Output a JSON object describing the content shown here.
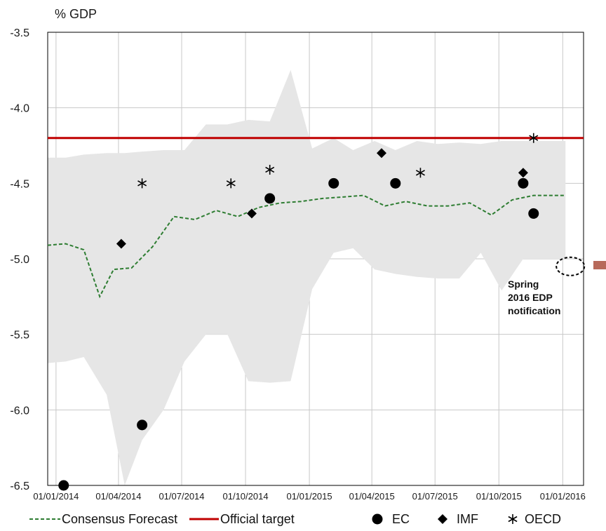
{
  "chart_data": {
    "type": "line",
    "ylabel": "% GDP",
    "ylim": [
      -6.5,
      -3.5
    ],
    "yticks": [
      -3.5,
      -4.0,
      -4.5,
      -5.0,
      -5.5,
      -6.0,
      -6.5
    ],
    "ytick_labels": [
      "-3.5",
      "-4.0",
      "-4.5",
      "-5.0",
      "-5.5",
      "-6.0",
      "-6.5"
    ],
    "xlim": [
      "2013-12-20",
      "2016-01-31"
    ],
    "xticks": [
      "2014-01-01",
      "2014-04-01",
      "2014-07-01",
      "2014-10-01",
      "2015-01-01",
      "2015-04-01",
      "2015-07-01",
      "2015-10-01",
      "2016-01-01"
    ],
    "xtick_labels": [
      "01/01/2014",
      "01/04/2014",
      "01/07/2014",
      "01/10/2014",
      "01/01/2015",
      "01/04/2015",
      "01/07/2015",
      "01/10/2015",
      "01/01/2016"
    ],
    "grid": true,
    "range_band": {
      "x": [
        "2013-12-20",
        "2014-01-15",
        "2014-02-10",
        "2014-03-15",
        "2014-04-10",
        "2014-05-05",
        "2014-06-05",
        "2014-07-05",
        "2014-08-05",
        "2014-09-05",
        "2014-10-05",
        "2014-11-05",
        "2014-12-05",
        "2015-01-05",
        "2015-02-05",
        "2015-03-05",
        "2015-04-05",
        "2015-05-05",
        "2015-06-05",
        "2015-07-05",
        "2015-08-05",
        "2015-09-05",
        "2015-10-05",
        "2015-11-05",
        "2015-12-05",
        "2016-01-05"
      ],
      "upper": [
        -4.33,
        -4.33,
        -4.31,
        -4.3,
        -4.3,
        -4.29,
        -4.28,
        -4.28,
        -4.11,
        -4.11,
        -4.08,
        -4.09,
        -3.75,
        -4.27,
        -4.2,
        -4.28,
        -4.22,
        -4.28,
        -4.22,
        -4.24,
        -4.23,
        -4.24,
        -4.22,
        -4.22,
        -4.22,
        -4.22
      ],
      "lower": [
        -5.69,
        -5.68,
        -5.65,
        -5.9,
        -6.5,
        -6.2,
        -6.0,
        -5.68,
        -5.5,
        -5.5,
        -5.81,
        -5.82,
        -5.81,
        -5.2,
        -4.96,
        -4.93,
        -5.07,
        -5.1,
        -5.12,
        -5.13,
        -5.13,
        -4.96,
        -5.21,
        -5.0,
        -5.0,
        -5.0
      ]
    },
    "series": [
      {
        "name": "Consensus Forecast",
        "kind": "line-dashed",
        "color": "#2e7d32",
        "x": [
          "2013-12-20",
          "2014-01-15",
          "2014-02-10",
          "2014-03-05",
          "2014-03-25",
          "2014-04-20",
          "2014-05-20",
          "2014-06-20",
          "2014-07-20",
          "2014-08-20",
          "2014-09-20",
          "2014-10-20",
          "2014-11-20",
          "2014-12-20",
          "2015-01-20",
          "2015-02-20",
          "2015-03-20",
          "2015-04-20",
          "2015-05-20",
          "2015-06-20",
          "2015-07-20",
          "2015-08-20",
          "2015-09-20",
          "2015-10-20",
          "2015-11-20",
          "2015-12-20",
          "2016-01-05"
        ],
        "values": [
          -4.91,
          -4.9,
          -4.94,
          -5.25,
          -5.07,
          -5.06,
          -4.92,
          -4.72,
          -4.74,
          -4.68,
          -4.72,
          -4.66,
          -4.63,
          -4.62,
          -4.6,
          -4.59,
          -4.58,
          -4.65,
          -4.62,
          -4.65,
          -4.65,
          -4.63,
          -4.71,
          -4.61,
          -4.58,
          -4.58,
          -4.58
        ]
      },
      {
        "name": "Official target",
        "kind": "line-solid",
        "color": "#c00000",
        "x": [
          "2013-12-20",
          "2016-01-31"
        ],
        "values": [
          -4.2,
          -4.2
        ]
      },
      {
        "name": "EC",
        "kind": "marker-circle",
        "color": "#000000",
        "x": [
          "2014-01-12",
          "2014-05-05",
          "2014-11-05",
          "2015-02-05",
          "2015-05-05",
          "2015-11-05",
          "2015-11-20"
        ],
        "values": [
          -6.5,
          -6.1,
          -4.6,
          -4.5,
          -4.5,
          -4.5,
          -4.7
        ]
      },
      {
        "name": "IMF",
        "kind": "marker-diamond",
        "color": "#000000",
        "x": [
          "2014-04-05",
          "2014-10-10",
          "2015-04-15",
          "2015-11-05"
        ],
        "values": [
          -4.9,
          -4.7,
          -4.3,
          -4.43
        ]
      },
      {
        "name": "OECD",
        "kind": "marker-asterisk",
        "color": "#000000",
        "x": [
          "2014-05-05",
          "2014-09-10",
          "2014-11-05",
          "2015-06-10",
          "2015-11-20"
        ],
        "values": [
          -4.5,
          -4.5,
          -4.41,
          -4.43,
          -4.2
        ]
      }
    ],
    "annotation": {
      "text_lines": [
        "Spring",
        "2016 EDP",
        "notification"
      ],
      "target": {
        "x": "2016-01-12",
        "y": -5.05
      },
      "shape": "dashed-ellipse"
    },
    "legend": {
      "placement": "bottom",
      "entries": [
        "Consensus Forecast",
        "Official target",
        "EC",
        "IMF",
        "OECD"
      ]
    },
    "colors": {
      "band": "#e6e6e6",
      "grid": "#c8c8c8",
      "annotation_marker": "#b7695a"
    }
  }
}
